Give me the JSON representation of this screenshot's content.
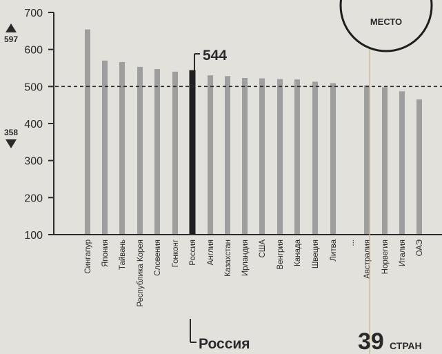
{
  "chart_data": {
    "type": "bar",
    "categories": [
      "Сингапур",
      "Япония",
      "Тайвань",
      "Республика Корея",
      "Словения",
      "Гонконг",
      "Россия",
      "Англия",
      "Казахстан",
      "Ирландия",
      "США",
      "Венгрия",
      "Канада",
      "Швеция",
      "Литва",
      "...",
      "Австралия",
      "Норвегия",
      "Италия",
      "ОАЭ"
    ],
    "values": [
      654,
      570,
      566,
      553,
      547,
      540,
      544,
      530,
      528,
      523,
      522,
      520,
      519,
      513,
      509,
      null,
      503,
      498,
      487,
      465
    ],
    "highlight": "Россия",
    "highlight_label": "544",
    "highlight_name": "Россия",
    "yticks": [
      "100",
      "200",
      "300",
      "400",
      "500",
      "600",
      "700"
    ],
    "ylim": [
      100,
      700
    ],
    "reference_line": 500,
    "scale_max": "597",
    "scale_min": "358",
    "grid": false,
    "colors": {
      "bar": "#9e9e9e",
      "highlight": "#202020",
      "axis": "#2a2a2a"
    }
  },
  "badge": {
    "place_label": "МЕСТО"
  },
  "footer": {
    "count": "39",
    "count_label": "СТРАН"
  }
}
